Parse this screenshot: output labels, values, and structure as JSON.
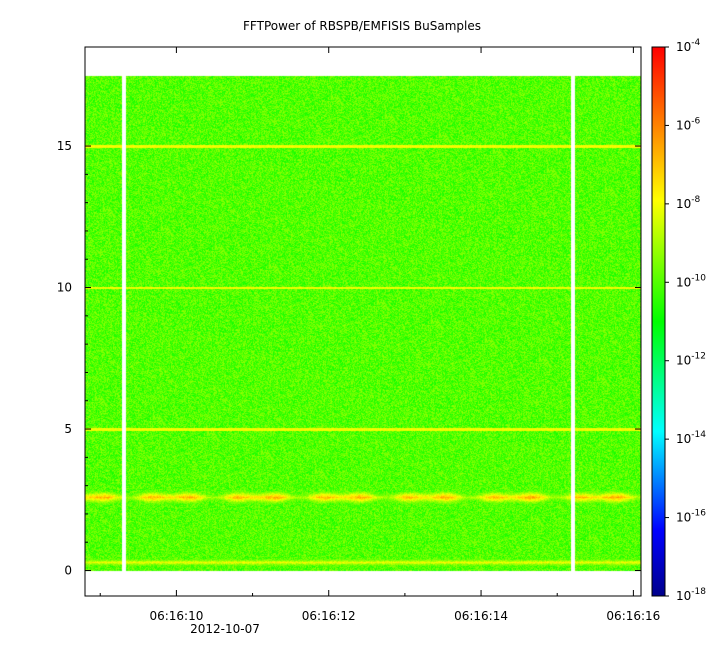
{
  "chart_data": {
    "type": "heatmap",
    "title": "FFTPower of RBSPB/EMFISIS  BuSamples",
    "xlabel": "",
    "ylabel": "",
    "x_tick_labels": [
      "06:16:10",
      "06:16:12",
      "06:16:14",
      "06:16:16"
    ],
    "x_date_label": "2012-10-07",
    "x_range": [
      "06:16:08.8",
      "06:16:16.1"
    ],
    "y_ticks": [
      0,
      5,
      10,
      15
    ],
    "ylim": [
      -0.9,
      18.5
    ],
    "data_y_extent": [
      0,
      17.5
    ],
    "colorbar": {
      "scale": "log",
      "range": [
        1e-18,
        0.0001
      ],
      "tick_bases": [
        "10",
        "10",
        "10",
        "10",
        "10",
        "10",
        "10",
        "10"
      ],
      "tick_exponents": [
        "-18",
        "-16",
        "-14",
        "-12",
        "-10",
        "-8",
        "-6",
        "-4"
      ],
      "colormap": [
        "#00008b",
        "#0000ff",
        "#00ffff",
        "#00ff00",
        "#ffff00",
        "#ff0000"
      ]
    },
    "features": {
      "background_level": 1e-10,
      "band_centers_freq": [
        2.6,
        0.3
      ],
      "band_levels": [
        1e-06,
        1e-08
      ],
      "harmonic_lines_freq": [
        5,
        10,
        15
      ],
      "data_gaps_time": [
        "06:16:09.3",
        "06:16:15.2"
      ]
    }
  }
}
